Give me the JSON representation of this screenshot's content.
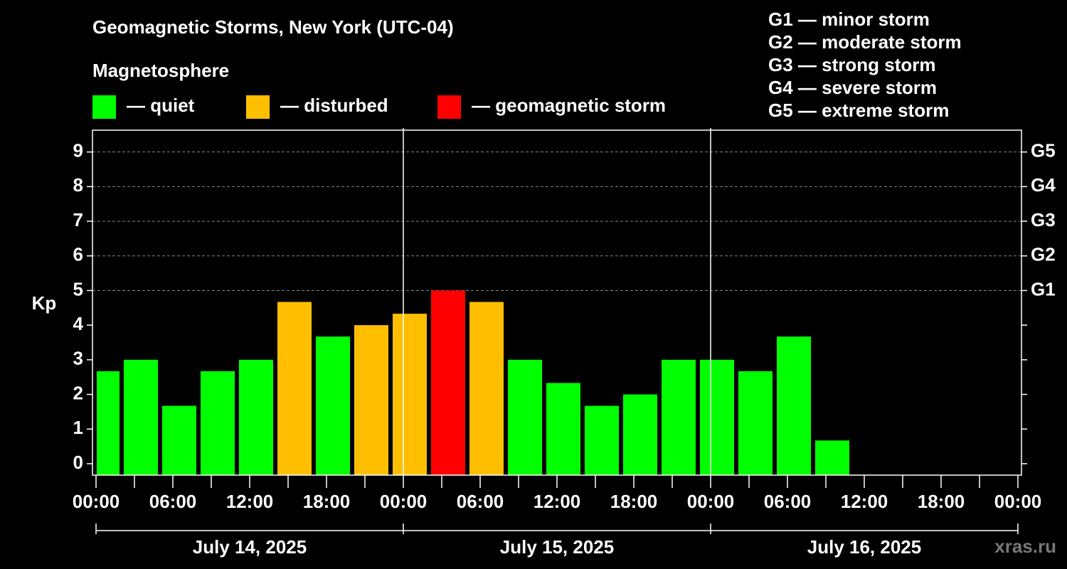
{
  "chart_data": {
    "type": "bar",
    "title": "Geomagnetic Storms, New York (UTC-04)",
    "legend_title": "Magnetosphere",
    "legend": [
      {
        "name": "— quiet",
        "color": "#00ff00"
      },
      {
        "name": "— disturbed",
        "color": "#ffbf00"
      },
      {
        "name": "— geomagnetic storm",
        "color": "#ff0000"
      }
    ],
    "storm_scale": [
      "G1 — minor storm",
      "G2 — moderate storm",
      "G3 — strong storm",
      "G4 — severe storm",
      "G5 — extreme storm"
    ],
    "ylabel": "Kp",
    "x": [
      "2025-07-14T00:00",
      "2025-07-14T02:00",
      "2025-07-14T05:00",
      "2025-07-14T08:00",
      "2025-07-14T11:00",
      "2025-07-14T14:00",
      "2025-07-14T17:00",
      "2025-07-14T20:00",
      "2025-07-14T23:00",
      "2025-07-15T02:00",
      "2025-07-15T05:00",
      "2025-07-15T08:00",
      "2025-07-15T11:00",
      "2025-07-15T14:00",
      "2025-07-15T17:00",
      "2025-07-15T20:00",
      "2025-07-15T23:00",
      "2025-07-16T02:00",
      "2025-07-16T05:00",
      "2025-07-16T08:00"
    ],
    "values": [
      2.67,
      3.0,
      1.67,
      2.67,
      3.0,
      4.67,
      3.67,
      4.0,
      4.33,
      5.0,
      4.67,
      3.0,
      2.33,
      1.67,
      2.0,
      3.0,
      3.0,
      2.67,
      3.67,
      0.67
    ],
    "colors": [
      "#00ff00",
      "#00ff00",
      "#00ff00",
      "#00ff00",
      "#00ff00",
      "#ffbf00",
      "#00ff00",
      "#ffbf00",
      "#ffbf00",
      "#ff0000",
      "#ffbf00",
      "#00ff00",
      "#00ff00",
      "#00ff00",
      "#00ff00",
      "#00ff00",
      "#00ff00",
      "#00ff00",
      "#00ff00",
      "#00ff00"
    ],
    "xlim": [
      "2025-07-14T00:00",
      "2025-07-17T00:00"
    ],
    "xticks": [
      {
        "value": "2025-07-14T00:00",
        "label": "00:00"
      },
      {
        "value": "2025-07-14T06:00",
        "label": "06:00"
      },
      {
        "value": "2025-07-14T12:00",
        "label": "12:00"
      },
      {
        "value": "2025-07-14T18:00",
        "label": "18:00"
      },
      {
        "value": "2025-07-15T00:00",
        "label": "00:00"
      },
      {
        "value": "2025-07-15T06:00",
        "label": "06:00"
      },
      {
        "value": "2025-07-15T12:00",
        "label": "12:00"
      },
      {
        "value": "2025-07-15T18:00",
        "label": "18:00"
      },
      {
        "value": "2025-07-16T00:00",
        "label": "00:00"
      },
      {
        "value": "2025-07-16T06:00",
        "label": "06:00"
      },
      {
        "value": "2025-07-16T12:00",
        "label": "12:00"
      },
      {
        "value": "2025-07-16T18:00",
        "label": "18:00"
      },
      {
        "value": "2025-07-17T00:00",
        "label": "00:00"
      }
    ],
    "xminorticks": [
      "2025-07-14T03:00",
      "2025-07-14T09:00",
      "2025-07-14T15:00",
      "2025-07-14T21:00",
      "2025-07-15T03:00",
      "2025-07-15T09:00",
      "2025-07-15T15:00",
      "2025-07-15T21:00",
      "2025-07-16T03:00",
      "2025-07-16T09:00",
      "2025-07-16T15:00",
      "2025-07-16T21:00"
    ],
    "days": [
      {
        "value": "2025-07-14T00:00",
        "label": "July 14, 2025"
      },
      {
        "value": "2025-07-15T00:00",
        "label": "July 15, 2025"
      },
      {
        "value": "2025-07-16T00:00",
        "label": "July 16, 2025"
      }
    ],
    "ylim": [
      -0.33,
      9.63
    ],
    "yticks": [
      0,
      1,
      2,
      3,
      4,
      5,
      6,
      7,
      8,
      9
    ],
    "y2lim": [
      -0.33,
      9.63
    ],
    "y2ticks": [
      {
        "value": 5,
        "label": "G1"
      },
      {
        "value": 6,
        "label": "G2"
      },
      {
        "value": 7,
        "label": "G3"
      },
      {
        "value": 8,
        "label": "G4"
      },
      {
        "value": 9,
        "label": "G5"
      }
    ],
    "grid": true,
    "watermark": "xras.ru"
  }
}
